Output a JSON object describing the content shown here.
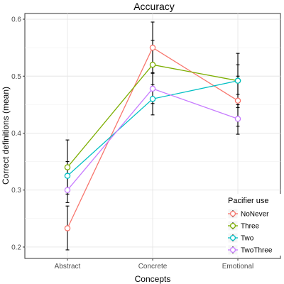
{
  "chart_data": {
    "type": "line",
    "title": "Accuracy",
    "xlabel": "Concepts",
    "ylabel": "Correct definitions (mean)",
    "categories": [
      "Abstract",
      "Concrete",
      "Emotional"
    ],
    "ylim": [
      0.18,
      0.61
    ],
    "yticks": [
      "0.2",
      "0.3",
      "0.4",
      "0.5",
      "0.6"
    ],
    "grid": true,
    "legend": {
      "title": "Pacifier use",
      "position": "bottom-right"
    },
    "series": [
      {
        "name": "NoNever",
        "color": "#F8766D",
        "values": [
          0.233,
          0.55,
          0.457
        ],
        "error": [
          [
            0.195,
            0.272
          ],
          [
            0.506,
            0.595
          ],
          [
            0.412,
            0.5
          ]
        ]
      },
      {
        "name": "Three",
        "color": "#7CAE00",
        "values": [
          0.34,
          0.52,
          0.492
        ],
        "error": [
          [
            0.293,
            0.388
          ],
          [
            0.478,
            0.563
          ],
          [
            0.445,
            0.54
          ]
        ]
      },
      {
        "name": "Two",
        "color": "#00BFC4",
        "values": [
          0.325,
          0.46,
          0.492
        ],
        "error": [
          [
            0.298,
            0.35
          ],
          [
            0.432,
            0.485
          ],
          [
            0.468,
            0.52
          ]
        ]
      },
      {
        "name": "TwoThree",
        "color": "#C77CFF",
        "values": [
          0.3,
          0.478,
          0.425
        ],
        "error": [
          [
            0.278,
            0.322
          ],
          [
            0.452,
            0.505
          ],
          [
            0.398,
            0.45
          ]
        ]
      }
    ]
  }
}
